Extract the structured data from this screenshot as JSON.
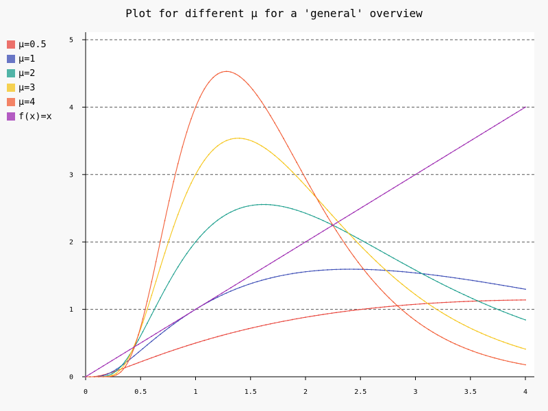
{
  "chart_data": {
    "type": "line",
    "title": "Plot for different μ for a 'general' overview",
    "xlabel": "",
    "ylabel": "",
    "xlim": [
      0,
      4
    ],
    "ylim": [
      0,
      5
    ],
    "xticks": [
      "0",
      "0.5",
      "1",
      "1.5",
      "2",
      "2.5",
      "3",
      "3.5",
      "4"
    ],
    "yticks": [
      "0",
      "1",
      "2",
      "3",
      "4",
      "5"
    ],
    "grid": "horizontal-dashed",
    "legend_position": "top-left",
    "series": [
      {
        "name": "μ=0.5",
        "mu": 0.5,
        "color": "#e8453c"
      },
      {
        "name": "μ=1",
        "mu": 1,
        "color": "#3a4bb5"
      },
      {
        "name": "μ=2",
        "mu": 2,
        "color": "#1a9e8c"
      },
      {
        "name": "μ=3",
        "mu": 3,
        "color": "#f5c518"
      },
      {
        "name": "μ=4",
        "mu": 4,
        "color": "#f25c35"
      },
      {
        "name": "f(x)=x",
        "mu": null,
        "color": "#9c27b0"
      }
    ]
  }
}
